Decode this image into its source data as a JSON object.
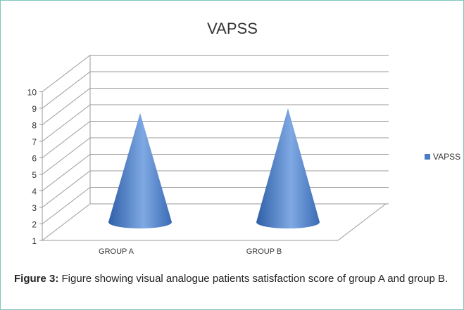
{
  "chart_data": {
    "type": "cone",
    "title": "VAPSS",
    "categories": [
      "GROUP A",
      "GROUP B"
    ],
    "series": [
      {
        "name": "VAPSS",
        "color": "#4a7cc4",
        "values": [
          7.6,
          7.9
        ]
      }
    ],
    "ylim": [
      1,
      10
    ],
    "yticks": [
      1,
      2,
      3,
      4,
      5,
      6,
      7,
      8,
      9,
      10
    ],
    "grid": true,
    "legend": "right"
  },
  "caption": {
    "label": "Figure 3:",
    "text": "Figure showing visual analogue patients satisfaction score of group A and group B."
  }
}
